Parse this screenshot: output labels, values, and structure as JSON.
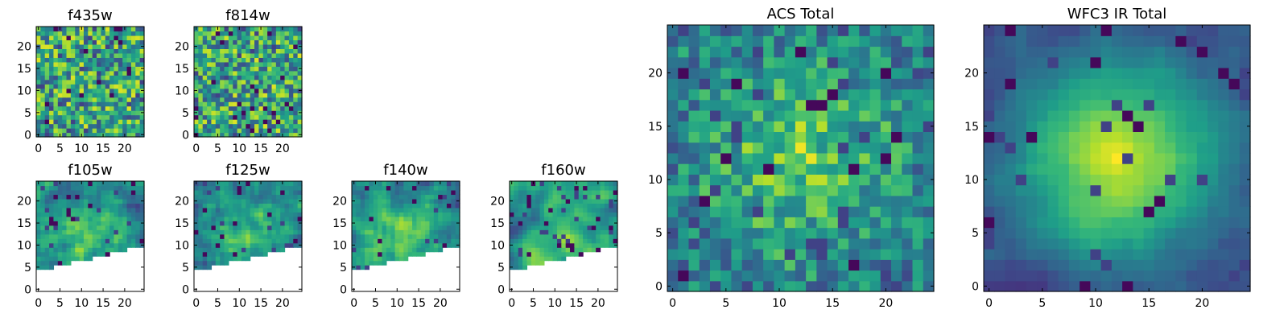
{
  "chart_data": [
    {
      "type": "heatmap",
      "title": "f435w",
      "xlim": [
        -0.5,
        24.5
      ],
      "ylim": [
        -0.5,
        24.5
      ],
      "xticks": [
        0,
        5,
        10,
        15,
        20
      ],
      "yticks": [
        0,
        5,
        10,
        15,
        20
      ],
      "xtick_labels": [
        "0",
        "5",
        "10",
        "15",
        "20"
      ],
      "ytick_labels": [
        "0",
        "5",
        "10",
        "15",
        "20"
      ],
      "colormap": "viridis",
      "masked": "none",
      "seed": 11,
      "smooth": 0,
      "blob": 0.0
    },
    {
      "type": "heatmap",
      "title": "f814w",
      "xlim": [
        -0.5,
        24.5
      ],
      "ylim": [
        -0.5,
        24.5
      ],
      "xticks": [
        0,
        5,
        10,
        15,
        20
      ],
      "yticks": [
        0,
        5,
        10,
        15,
        20
      ],
      "xtick_labels": [
        "0",
        "5",
        "10",
        "15",
        "20"
      ],
      "ytick_labels": [
        "0",
        "5",
        "10",
        "15",
        "20"
      ],
      "colormap": "viridis",
      "masked": "none",
      "seed": 23,
      "smooth": 0,
      "blob": 0.0
    },
    {
      "type": "heatmap",
      "title": "f105w",
      "xlim": [
        -0.5,
        24.5
      ],
      "ylim": [
        -0.5,
        24.5
      ],
      "xticks": [
        0,
        5,
        10,
        15,
        20
      ],
      "yticks": [
        0,
        5,
        10,
        15,
        20
      ],
      "xtick_labels": [
        "0",
        "5",
        "10",
        "15",
        "20"
      ],
      "ytick_labels": [
        "0",
        "5",
        "10",
        "15",
        "20"
      ],
      "colormap": "viridis",
      "masked": "lower-right wedge (no data)",
      "mask_line": [
        [
          -0.5,
          4.5
        ],
        [
          24.5,
          10.5
        ]
      ],
      "seed": 37,
      "smooth": 1,
      "blob": 0.3
    },
    {
      "type": "heatmap",
      "title": "f125w",
      "xlim": [
        -0.5,
        24.5
      ],
      "ylim": [
        -0.5,
        24.5
      ],
      "xticks": [
        0,
        5,
        10,
        15,
        20
      ],
      "yticks": [
        0,
        5,
        10,
        15,
        20
      ],
      "xtick_labels": [
        "0",
        "5",
        "10",
        "15",
        "20"
      ],
      "ytick_labels": [
        "0",
        "5",
        "10",
        "15",
        "20"
      ],
      "colormap": "viridis",
      "masked": "lower-right wedge (no data)",
      "mask_line": [
        [
          -0.5,
          4.5
        ],
        [
          24.5,
          10.5
        ]
      ],
      "seed": 41,
      "smooth": 1,
      "blob": 0.3
    },
    {
      "type": "heatmap",
      "title": "f140w",
      "xlim": [
        -0.5,
        24.5
      ],
      "ylim": [
        -0.5,
        24.5
      ],
      "xticks": [
        0,
        5,
        10,
        15,
        20
      ],
      "yticks": [
        0,
        5,
        10,
        15,
        20
      ],
      "xtick_labels": [
        "0",
        "5",
        "10",
        "15",
        "20"
      ],
      "ytick_labels": [
        "0",
        "5",
        "10",
        "15",
        "20"
      ],
      "colormap": "viridis",
      "masked": "lower-right wedge (no data)",
      "mask_line": [
        [
          -0.5,
          4.5
        ],
        [
          24.5,
          10.5
        ]
      ],
      "seed": 53,
      "smooth": 1,
      "blob": 0.3
    },
    {
      "type": "heatmap",
      "title": "f160w",
      "xlim": [
        -0.5,
        24.5
      ],
      "ylim": [
        -0.5,
        24.5
      ],
      "xticks": [
        0,
        5,
        10,
        15,
        20
      ],
      "yticks": [
        0,
        5,
        10,
        15,
        20
      ],
      "xtick_labels": [
        "0",
        "5",
        "10",
        "15",
        "20"
      ],
      "ytick_labels": [
        "0",
        "5",
        "10",
        "15",
        "20"
      ],
      "colormap": "viridis",
      "masked": "lower-right wedge (no data)",
      "mask_line": [
        [
          -0.5,
          4.5
        ],
        [
          24.5,
          10.5
        ]
      ],
      "seed": 67,
      "smooth": 2,
      "blob": 0.2
    },
    {
      "type": "heatmap",
      "title": "ACS Total",
      "xlim": [
        -0.5,
        24.5
      ],
      "ylim": [
        -0.5,
        24.5
      ],
      "xticks": [
        0,
        5,
        10,
        15,
        20
      ],
      "yticks": [
        0,
        5,
        10,
        15,
        20
      ],
      "xtick_labels": [
        "0",
        "5",
        "10",
        "15",
        "20"
      ],
      "ytick_labels": [
        "0",
        "5",
        "10",
        "15",
        "20"
      ],
      "colormap": "viridis",
      "masked": "none",
      "seed": 79,
      "smooth": 0,
      "blob": 0.35
    },
    {
      "type": "heatmap",
      "title": "WFC3 IR Total",
      "xlim": [
        -0.5,
        24.5
      ],
      "ylim": [
        -0.5,
        24.5
      ],
      "xticks": [
        0,
        5,
        10,
        15,
        20
      ],
      "yticks": [
        0,
        5,
        10,
        15,
        20
      ],
      "xtick_labels": [
        "0",
        "5",
        "10",
        "15",
        "20"
      ],
      "ytick_labels": [
        "0",
        "5",
        "10",
        "15",
        "20"
      ],
      "colormap": "viridis",
      "masked": "none",
      "seed": 97,
      "smooth": 1,
      "blob": 0.7
    }
  ]
}
